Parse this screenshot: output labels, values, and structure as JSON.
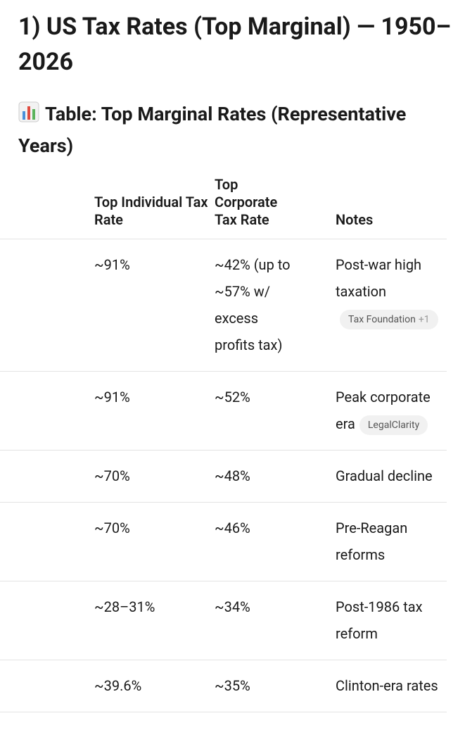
{
  "header": {
    "title": "1) US Tax Rates (Top Marginal) — 1950–2026",
    "subtitle": "Table: Top Marginal Rates (Representative Years)"
  },
  "table": {
    "headers": [
      "Top Individual Tax Rate",
      "Top Corporate Tax Rate",
      "Notes"
    ],
    "rows": [
      {
        "individual": "~91%",
        "corporate": "~42% (up to ~57% w/ excess profits tax)",
        "notes": "Post-war high taxation",
        "source": {
          "name": "Tax Foundation",
          "more": "+1"
        }
      },
      {
        "individual": "~91%",
        "corporate": "~52%",
        "notes": "Peak corporate era",
        "source": {
          "name": "LegalClarity"
        }
      },
      {
        "individual": "~70%",
        "corporate": "~48%",
        "notes": "Gradual decline"
      },
      {
        "individual": "~70%",
        "corporate": "~46%",
        "notes": "Pre-Reagan reforms"
      },
      {
        "individual": "~28–31%",
        "corporate": "~34%",
        "notes": "Post-1986 tax reform"
      },
      {
        "individual": "~39.6%",
        "corporate": "~35%",
        "notes": "Clinton-era rates"
      }
    ]
  }
}
